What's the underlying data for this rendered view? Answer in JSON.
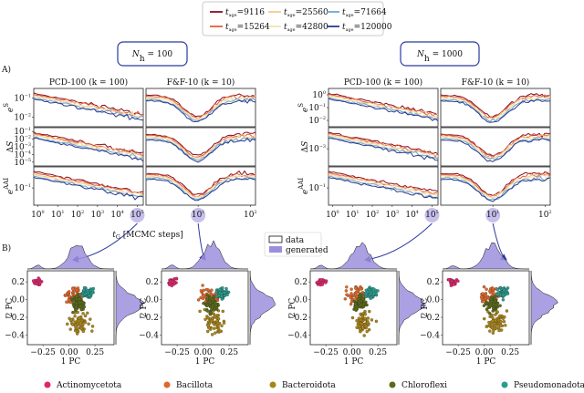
{
  "legend": {
    "entries": [
      {
        "sym": "t",
        "sub": "age",
        "value": "=9116",
        "color": "#8b0d1e"
      },
      {
        "sym": "t",
        "sub": "age",
        "value": "=25560",
        "color": "#f5c88a"
      },
      {
        "sym": "t",
        "sub": "age",
        "value": "=71664",
        "color": "#6aa6d8"
      },
      {
        "sym": "t",
        "sub": "age",
        "value": "=15264",
        "color": "#e0603a"
      },
      {
        "sym": "t",
        "sub": "age",
        "value": "=42800",
        "color": "#f0e3b0"
      },
      {
        "sym": "t",
        "sub": "age",
        "value": "=120000",
        "color": "#2b3a8f"
      }
    ]
  },
  "panel_labels": [
    "A)",
    "B)"
  ],
  "row_labels": [
    {
      "base": "e",
      "sup": "S"
    },
    {
      "base": "Δ",
      "it": "S"
    },
    {
      "base": "e",
      "sup": "AAI"
    }
  ],
  "groups": [
    {
      "label": {
        "sym": "N",
        "sub": "h",
        "rel": " = 100"
      },
      "panel_titles": [
        "PCD-100 (k = 100)",
        "F&F-10 (k = 10)"
      ],
      "yticks": [
        [
          {
            "base": "10",
            "exp": "−1"
          },
          {
            "base": "10",
            "exp": "−2"
          }
        ],
        [
          {
            "base": "10",
            "exp": "−1"
          },
          {
            "base": "10",
            "exp": "−2"
          },
          {
            "base": "10",
            "exp": "−3"
          },
          {
            "base": "10",
            "exp": "−4"
          },
          {
            "base": "10",
            "exp": "−5"
          }
        ],
        [
          {
            "base": "10",
            "exp": "−1"
          }
        ]
      ],
      "xticks": [
        [
          {
            "base": "10",
            "exp": "0"
          },
          {
            "base": "10",
            "exp": "1"
          },
          {
            "base": "10",
            "exp": "2"
          },
          {
            "base": "10",
            "exp": "3"
          },
          {
            "base": "10",
            "exp": "4"
          },
          {
            "base": "10",
            "exp": "5"
          }
        ],
        [
          {
            "base": "10",
            "exp": "1"
          },
          {
            "base": "10",
            "exp": "2"
          }
        ]
      ],
      "x_label": {
        "sym": "t",
        "sub": "G",
        "rest": " [MCMC steps]"
      }
    },
    {
      "label": {
        "sym": "N",
        "sub": "h",
        "rel": " = 1000"
      },
      "panel_titles": [
        "PCD-100 (k = 100)",
        "F&F-10 (k = 10)"
      ],
      "yticks": [
        [
          {
            "base": "10",
            "exp": "0"
          },
          {
            "base": "10",
            "exp": "−1"
          },
          {
            "base": "10",
            "exp": "−2"
          }
        ],
        [
          {
            "base": "10",
            "exp": "−3"
          }
        ],
        [
          {
            "base": "10",
            "exp": "−1"
          }
        ]
      ],
      "xticks": [
        [
          {
            "base": "10",
            "exp": "0"
          },
          {
            "base": "10",
            "exp": "1"
          },
          {
            "base": "10",
            "exp": "2"
          },
          {
            "base": "10",
            "exp": "3"
          },
          {
            "base": "10",
            "exp": "4"
          },
          {
            "base": "10",
            "exp": "5"
          }
        ],
        [
          {
            "base": "10",
            "exp": "1"
          },
          {
            "base": "10",
            "exp": "2"
          }
        ]
      ]
    }
  ],
  "hist_legend": {
    "data": "data",
    "generated": "generated"
  },
  "scatter": {
    "y_label": "2 PC",
    "x_label": "1 PC",
    "xticks": [
      "−0.25",
      "0.00",
      "0.25"
    ],
    "yticks": [
      "0.2",
      "0.0",
      "−0.2",
      "−0.4"
    ]
  },
  "categories": [
    {
      "name": "Actinomycetota",
      "color": "#e0266e"
    },
    {
      "name": "Bacillota",
      "color": "#e0672a"
    },
    {
      "name": "Bacteroidota",
      "color": "#a88418"
    },
    {
      "name": "Chloroflexi",
      "color": "#5a6b1a"
    },
    {
      "name": "Pseudomonadota",
      "color": "#2a9d8f"
    }
  ]
}
